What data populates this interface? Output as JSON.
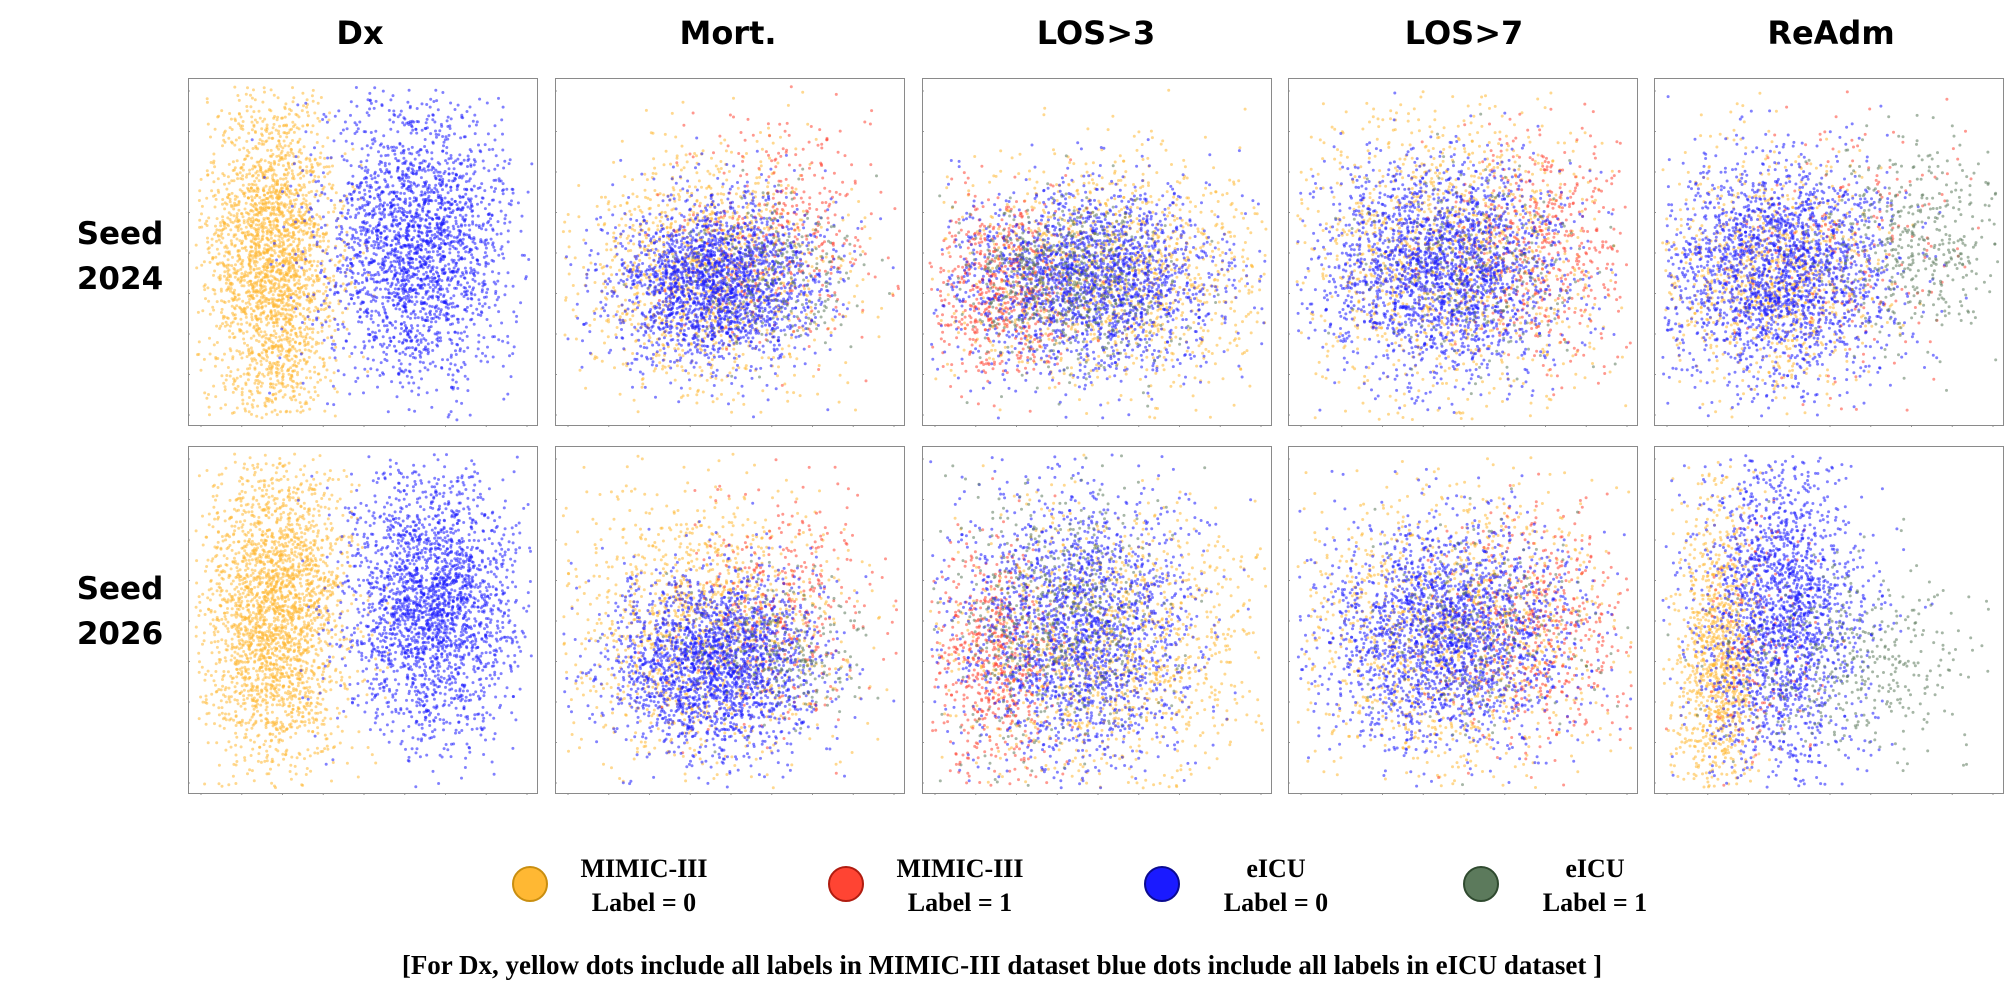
{
  "chart_data": {
    "type": "scatter",
    "description_kind": "grid of 2D embedding scatter plots",
    "columns": [
      "Dx",
      "Mort.",
      "LOS>3",
      "LOS>7",
      "ReAdm"
    ],
    "rows": [
      {
        "line1": "Seed",
        "line2": "2024"
      },
      {
        "line1": "Seed",
        "line2": "2026"
      }
    ],
    "legend": [
      {
        "line1": "MIMIC-III",
        "line2": "Label = 0",
        "color": "#FFB833",
        "border": "#C98E10",
        "key": "m0"
      },
      {
        "line1": "MIMIC-III",
        "line2": "Label = 1",
        "color": "#FF4433",
        "border": "#B01C10",
        "key": "m1"
      },
      {
        "line1": "eICU",
        "line2": "Label = 0",
        "color": "#1A1AFF",
        "border": "#0B0B90",
        "key": "e0"
      },
      {
        "line1": "eICU",
        "line2": "Label = 1",
        "color": "#5C7A5C",
        "border": "#2F4A2F",
        "key": "e1"
      }
    ],
    "note": "[For Dx, yellow dots include all labels in MIMIC-III dataset blue dots include all labels in  eICU dataset ]",
    "axes_visible": false,
    "grid": false,
    "clusters": {
      "Dx|2024": [
        {
          "series": "m0",
          "cx": 0.24,
          "cy": 0.52,
          "sx": 0.09,
          "sy": 0.24,
          "n": 2600
        },
        {
          "series": "e0",
          "cx": 0.65,
          "cy": 0.47,
          "sx": 0.13,
          "sy": 0.2,
          "n": 2400
        }
      ],
      "Dx|2026": [
        {
          "series": "m0",
          "cx": 0.25,
          "cy": 0.48,
          "sx": 0.1,
          "sy": 0.22,
          "n": 2600
        },
        {
          "series": "e0",
          "cx": 0.7,
          "cy": 0.45,
          "sx": 0.12,
          "sy": 0.19,
          "n": 2400
        }
      ],
      "Mort.|2024": [
        {
          "series": "m0",
          "cx": 0.42,
          "cy": 0.55,
          "sx": 0.18,
          "sy": 0.17,
          "n": 1300
        },
        {
          "series": "m1",
          "cx": 0.66,
          "cy": 0.44,
          "sx": 0.14,
          "sy": 0.16,
          "n": 350
        },
        {
          "series": "e0",
          "cx": 0.46,
          "cy": 0.58,
          "sx": 0.15,
          "sy": 0.12,
          "n": 2200
        },
        {
          "series": "e1",
          "cx": 0.62,
          "cy": 0.55,
          "sx": 0.12,
          "sy": 0.1,
          "n": 250
        }
      ],
      "Mort.|2026": [
        {
          "series": "m0",
          "cx": 0.42,
          "cy": 0.52,
          "sx": 0.19,
          "sy": 0.19,
          "n": 1300
        },
        {
          "series": "m1",
          "cx": 0.66,
          "cy": 0.45,
          "sx": 0.14,
          "sy": 0.16,
          "n": 350
        },
        {
          "series": "e0",
          "cx": 0.45,
          "cy": 0.62,
          "sx": 0.15,
          "sy": 0.13,
          "n": 2200
        },
        {
          "series": "e1",
          "cx": 0.62,
          "cy": 0.58,
          "sx": 0.12,
          "sy": 0.1,
          "n": 250
        }
      ],
      "LOS>3|2024": [
        {
          "series": "m0",
          "cx": 0.55,
          "cy": 0.55,
          "sx": 0.22,
          "sy": 0.17,
          "n": 1300
        },
        {
          "series": "m1",
          "cx": 0.22,
          "cy": 0.6,
          "sx": 0.1,
          "sy": 0.13,
          "n": 600
        },
        {
          "series": "e0",
          "cx": 0.48,
          "cy": 0.58,
          "sx": 0.19,
          "sy": 0.13,
          "n": 2000
        },
        {
          "series": "e1",
          "cx": 0.4,
          "cy": 0.58,
          "sx": 0.15,
          "sy": 0.12,
          "n": 600
        }
      ],
      "LOS>3|2026": [
        {
          "series": "m0",
          "cx": 0.55,
          "cy": 0.58,
          "sx": 0.22,
          "sy": 0.2,
          "n": 1300
        },
        {
          "series": "m1",
          "cx": 0.2,
          "cy": 0.6,
          "sx": 0.09,
          "sy": 0.17,
          "n": 600
        },
        {
          "series": "e0",
          "cx": 0.45,
          "cy": 0.52,
          "sx": 0.17,
          "sy": 0.2,
          "n": 2000
        },
        {
          "series": "e1",
          "cx": 0.38,
          "cy": 0.5,
          "sx": 0.15,
          "sy": 0.19,
          "n": 600
        }
      ],
      "LOS>7|2024": [
        {
          "series": "m0",
          "cx": 0.45,
          "cy": 0.5,
          "sx": 0.22,
          "sy": 0.21,
          "n": 1300
        },
        {
          "series": "m1",
          "cx": 0.72,
          "cy": 0.48,
          "sx": 0.14,
          "sy": 0.17,
          "n": 500
        },
        {
          "series": "e0",
          "cx": 0.44,
          "cy": 0.55,
          "sx": 0.17,
          "sy": 0.15,
          "n": 2200
        },
        {
          "series": "e1",
          "cx": 0.55,
          "cy": 0.55,
          "sx": 0.16,
          "sy": 0.14,
          "n": 250
        }
      ],
      "LOS>7|2026": [
        {
          "series": "m0",
          "cx": 0.45,
          "cy": 0.52,
          "sx": 0.22,
          "sy": 0.2,
          "n": 1300
        },
        {
          "series": "m1",
          "cx": 0.72,
          "cy": 0.52,
          "sx": 0.14,
          "sy": 0.16,
          "n": 500
        },
        {
          "series": "e0",
          "cx": 0.45,
          "cy": 0.53,
          "sx": 0.18,
          "sy": 0.16,
          "n": 2200
        },
        {
          "series": "e1",
          "cx": 0.55,
          "cy": 0.53,
          "sx": 0.16,
          "sy": 0.14,
          "n": 250
        }
      ],
      "ReAdm|2024": [
        {
          "series": "m0",
          "cx": 0.32,
          "cy": 0.55,
          "sx": 0.16,
          "sy": 0.17,
          "n": 1000
        },
        {
          "series": "m1",
          "cx": 0.58,
          "cy": 0.5,
          "sx": 0.18,
          "sy": 0.2,
          "n": 200
        },
        {
          "series": "e0",
          "cx": 0.35,
          "cy": 0.55,
          "sx": 0.16,
          "sy": 0.16,
          "n": 2200
        },
        {
          "series": "e1",
          "cx": 0.75,
          "cy": 0.45,
          "sx": 0.13,
          "sy": 0.14,
          "n": 450
        }
      ],
      "ReAdm|2026": [
        {
          "series": "m0",
          "cx": 0.18,
          "cy": 0.6,
          "sx": 0.06,
          "sy": 0.22,
          "n": 1100
        },
        {
          "series": "m1",
          "cx": 0.3,
          "cy": 0.55,
          "sx": 0.08,
          "sy": 0.18,
          "n": 150
        },
        {
          "series": "e0",
          "cx": 0.36,
          "cy": 0.48,
          "sx": 0.12,
          "sy": 0.22,
          "n": 2000
        },
        {
          "series": "e1",
          "cx": 0.55,
          "cy": 0.62,
          "sx": 0.18,
          "sy": 0.14,
          "n": 450
        }
      ]
    }
  }
}
